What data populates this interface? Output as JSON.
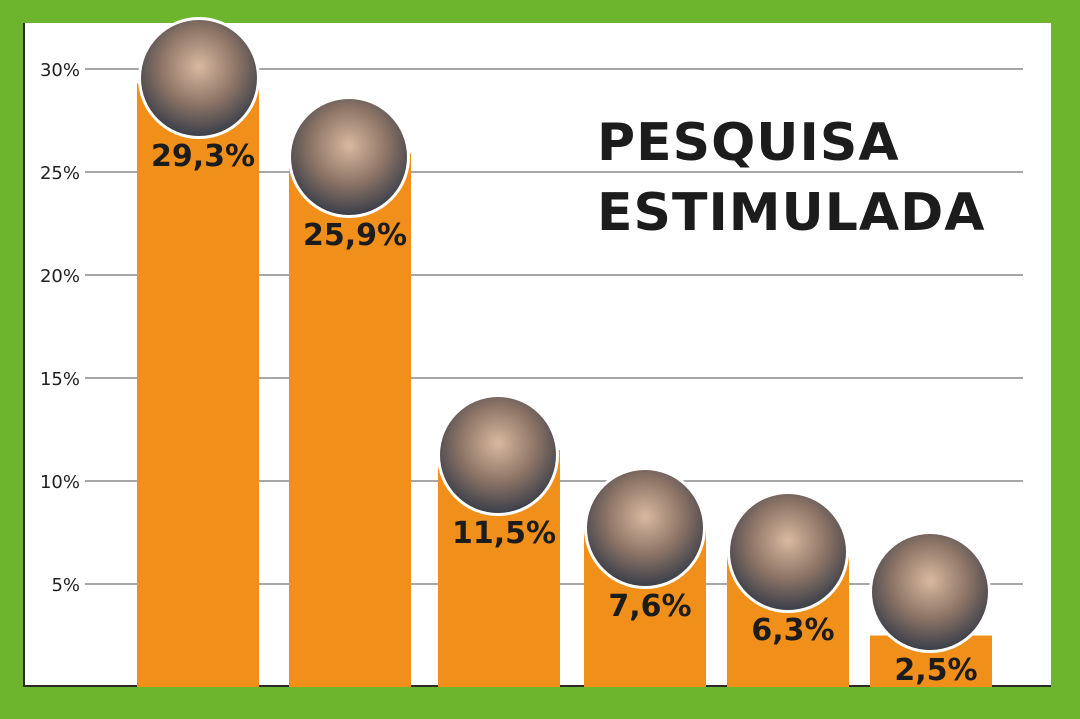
{
  "chart_data": {
    "type": "bar",
    "title_lines": [
      "PESQUISA",
      "ESTIMULADA"
    ],
    "categories": [
      "",
      "",
      "",
      "",
      "",
      ""
    ],
    "values": [
      29.3,
      25.9,
      11.5,
      7.6,
      6.3,
      2.5
    ],
    "value_labels": [
      "29,3%",
      "25,9%",
      "11,5%",
      "7,6%",
      "6,3%",
      "2,5%"
    ],
    "y_ticks": [
      5,
      10,
      15,
      20,
      25,
      30
    ],
    "y_tick_labels": [
      "5%",
      "10%",
      "15%",
      "20%",
      "25%",
      "30%"
    ],
    "ylim": [
      0,
      30
    ],
    "grid": true,
    "bar_color": "#f0901a",
    "background_color": "#6cb52d",
    "candidate_photos": true
  }
}
